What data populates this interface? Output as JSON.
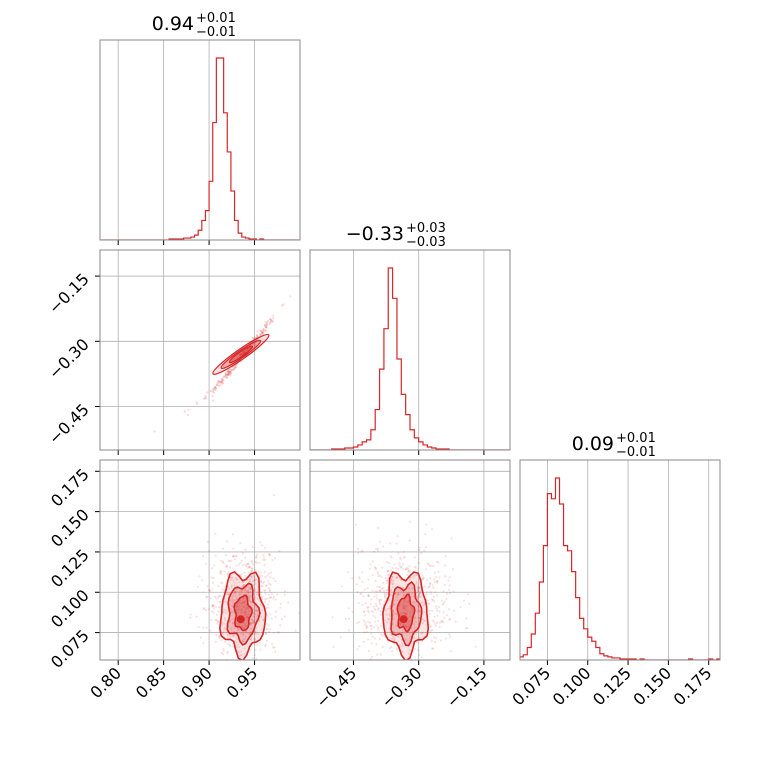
{
  "chart_data": {
    "type": "corner",
    "color": "#d62728",
    "grid": true,
    "parameters": [
      {
        "median_label": "0.94",
        "upper": "+0.01",
        "lower": "−0.01",
        "range": [
          0.78,
          1.0
        ],
        "ticks": [
          0.8,
          0.85,
          0.9,
          0.95
        ],
        "tick_labels": [
          "0.80",
          "0.85",
          "0.90",
          "0.95"
        ]
      },
      {
        "median_label": "−0.33",
        "upper": "+0.03",
        "lower": "−0.03",
        "range": [
          -0.55,
          -0.09
        ],
        "ticks": [
          -0.45,
          -0.3,
          -0.15
        ],
        "tick_labels": [
          "−0.45",
          "−0.30",
          "−0.15"
        ]
      },
      {
        "median_label": "0.09",
        "upper": "+0.01",
        "lower": "−0.01",
        "range": [
          0.058,
          0.182
        ],
        "ticks": [
          0.075,
          0.1,
          0.125,
          0.15,
          0.175
        ],
        "tick_labels": [
          "0.075",
          "0.100",
          "0.125",
          "0.150",
          "0.175"
        ]
      }
    ],
    "histograms": [
      {
        "edges_start": 0.78,
        "bin_width": 0.004,
        "counts": [
          0,
          0,
          0,
          0,
          0,
          0,
          0,
          0,
          0,
          0,
          0,
          0,
          0,
          0,
          0,
          0,
          0,
          0,
          0,
          1,
          1,
          1,
          1,
          2,
          2,
          3,
          5,
          10,
          20,
          30,
          60,
          120,
          186,
          186,
          130,
          90,
          50,
          20,
          7,
          3,
          2,
          1,
          1,
          0,
          1,
          0,
          0,
          0,
          0,
          0,
          0,
          0,
          0,
          0,
          0
        ]
      },
      {
        "edges_start": -0.55,
        "bin_width": 0.01,
        "counts": [
          0,
          0,
          0,
          0,
          0,
          1,
          1,
          1,
          2,
          2,
          3,
          5,
          8,
          10,
          20,
          40,
          80,
          120,
          180,
          150,
          90,
          55,
          35,
          20,
          12,
          8,
          5,
          3,
          2,
          1,
          1,
          1,
          0,
          0,
          0,
          0,
          0,
          0,
          0,
          0,
          0,
          0,
          0,
          0,
          0,
          0,
          0
        ]
      },
      {
        "edges_start": 0.0575,
        "bin_width": 0.0025,
        "counts": [
          3,
          5,
          12,
          25,
          45,
          75,
          110,
          160,
          155,
          175,
          150,
          110,
          105,
          85,
          60,
          40,
          30,
          22,
          18,
          12,
          6,
          4,
          3,
          2,
          2,
          1,
          1,
          1,
          1,
          0,
          1,
          0,
          0,
          0,
          0,
          0,
          0,
          0,
          0,
          0,
          0,
          0,
          1,
          0,
          0,
          0,
          0,
          1,
          0,
          1
        ]
      }
    ],
    "joint": [
      {
        "x_param": 0,
        "y_param": 1,
        "shape": "narrow-correlated",
        "center": [
          0.935,
          -0.33
        ],
        "ridge_points": [
          [
            0.84,
            -0.51
          ],
          [
            0.88,
            -0.46
          ],
          [
            0.91,
            -0.4
          ],
          [
            0.93,
            -0.35
          ],
          [
            0.95,
            -0.3
          ],
          [
            0.97,
            -0.25
          ],
          [
            0.99,
            -0.19
          ]
        ]
      },
      {
        "x_param": 0,
        "y_param": 2,
        "shape": "elliptical",
        "center": [
          0.937,
          0.087
        ],
        "spread": [
          0.013,
          0.009
        ]
      },
      {
        "x_param": 1,
        "y_param": 2,
        "shape": "elliptical",
        "center": [
          -0.33,
          0.087
        ],
        "spread": [
          0.035,
          0.009
        ]
      }
    ]
  }
}
